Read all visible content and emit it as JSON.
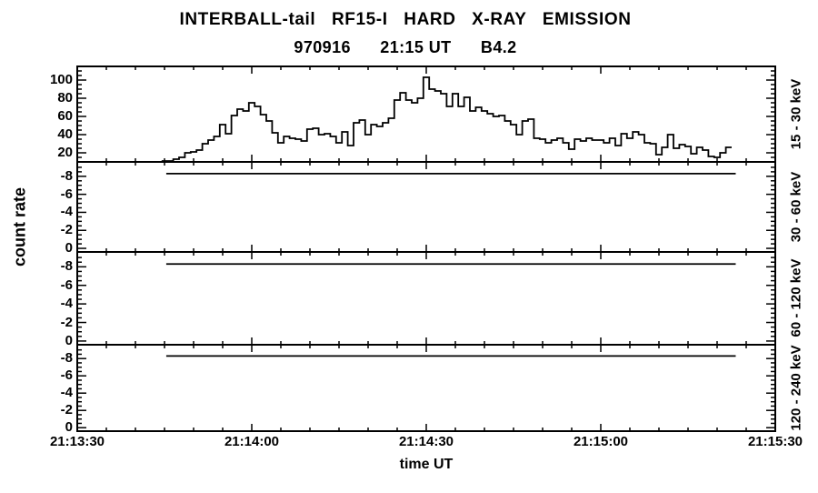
{
  "colors": {
    "background": "#ffffff",
    "foreground": "#000000"
  },
  "chart_data": {
    "type": "line",
    "subtype": "multi-panel step histogram time series",
    "title": "INTERBALL-tail   RF15-I   HARD   X-RAY   EMISSION",
    "subtitle": "970916      21:15 UT      B4.2",
    "xlabel": "time UT",
    "ylabel": "count rate",
    "grid": false,
    "x_axis": {
      "tick_labels": [
        "21:13:30",
        "21:14:00",
        "21:14:30",
        "21:15:00",
        "21:15:30"
      ],
      "tick_seconds": [
        0,
        30,
        60,
        90,
        120
      ],
      "minor_step_seconds": 5,
      "range_seconds": [
        0,
        120
      ]
    },
    "panels": [
      {
        "energy_label": "15 - 30 keV",
        "y_ticks": [
          20,
          40,
          60,
          80,
          100
        ],
        "y_minor_step": 5,
        "ylim_bottom_top": [
          10,
          115
        ],
        "series": {
          "style": "histogram-step",
          "t_start_seconds": 14.5,
          "dt_seconds": 1,
          "values": [
            11,
            10,
            13,
            15,
            20,
            21,
            23,
            30,
            34,
            38,
            51,
            41,
            61,
            68,
            66,
            75,
            71,
            62,
            55,
            42,
            31,
            38,
            36,
            35,
            33,
            46,
            47,
            40,
            41,
            38,
            31,
            43,
            28,
            53,
            56,
            40,
            51,
            49,
            53,
            58,
            78,
            86,
            78,
            75,
            80,
            103,
            90,
            88,
            85,
            71,
            85,
            71,
            81,
            66,
            70,
            66,
            63,
            60,
            61,
            55,
            51,
            40,
            55,
            57,
            36,
            35,
            31,
            34,
            36,
            31,
            24,
            35,
            33,
            36,
            34,
            34,
            31,
            36,
            28,
            41,
            36,
            43,
            40,
            31,
            30,
            18,
            26,
            40,
            25,
            29,
            27,
            19,
            26,
            23,
            16,
            15,
            20,
            26
          ]
        }
      },
      {
        "energy_label": "30 - 60 keV",
        "y_ticks": [
          -8,
          -6,
          -4,
          -2,
          0
        ],
        "y_minor_step": 0.5,
        "ylim_bottom_top": [
          0.4,
          -9.6
        ],
        "series": {
          "style": "flat-line",
          "value": -8.3,
          "t_start_seconds": 15.3,
          "t_end_seconds": 113.2
        }
      },
      {
        "energy_label": "60 - 120 keV",
        "y_ticks": [
          -8,
          -6,
          -4,
          -2,
          0
        ],
        "y_minor_step": 0.5,
        "ylim_bottom_top": [
          0.4,
          -9.6
        ],
        "series": {
          "style": "flat-line",
          "value": -8.3,
          "t_start_seconds": 15.3,
          "t_end_seconds": 113.2
        }
      },
      {
        "energy_label": "120 - 240 keV",
        "y_ticks": [
          -8,
          -6,
          -4,
          -2,
          0
        ],
        "y_minor_step": 0.5,
        "ylim_bottom_top": [
          0.4,
          -9.6
        ],
        "series": {
          "style": "flat-line",
          "value": -8.3,
          "t_start_seconds": 15.3,
          "t_end_seconds": 113.2
        }
      }
    ]
  }
}
